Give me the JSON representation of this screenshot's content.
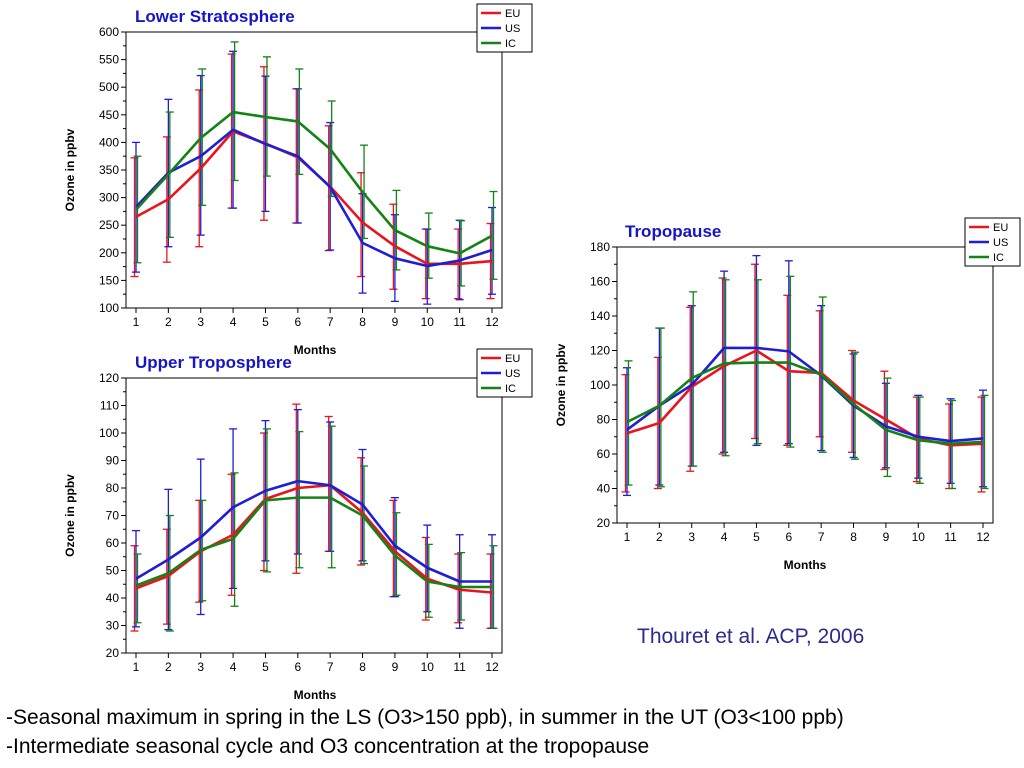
{
  "chart_data": [
    {
      "type": "line",
      "title": "Lower Stratosphere",
      "xlabel": "Months",
      "ylabel": "Ozone in ppbv",
      "ylim": [
        100,
        600
      ],
      "yticks": [
        100,
        150,
        200,
        250,
        300,
        350,
        400,
        450,
        500,
        550,
        600
      ],
      "x": [
        1,
        2,
        3,
        4,
        5,
        6,
        7,
        8,
        9,
        10,
        11,
        12
      ],
      "legend_position": "top-right",
      "series": [
        {
          "name": "EU",
          "color": "#e8141e",
          "values": [
            265,
            297,
            353,
            420,
            398,
            373,
            320,
            255,
            212,
            180,
            180,
            185
          ],
          "err_low": [
            157,
            183,
            211,
            281,
            259,
            254,
            204,
            157,
            134,
            117,
            117,
            117
          ],
          "err_high": [
            372,
            410,
            495,
            560,
            537,
            497,
            430,
            345,
            288,
            243,
            243,
            253
          ]
        },
        {
          "name": "US",
          "color": "#1e1ed2",
          "values": [
            283,
            345,
            375,
            423,
            397,
            375,
            319,
            218,
            190,
            176,
            186,
            205
          ],
          "err_low": [
            165,
            211,
            232,
            281,
            275,
            254,
            205,
            127,
            112,
            107,
            115,
            125
          ],
          "err_high": [
            400,
            478,
            521,
            565,
            520,
            497,
            436,
            307,
            269,
            243,
            259,
            282
          ]
        },
        {
          "name": "IC",
          "color": "#148214",
          "values": [
            278,
            342,
            408,
            455,
            446,
            438,
            388,
            310,
            241,
            212,
            199,
            231
          ],
          "err_low": [
            182,
            228,
            286,
            331,
            339,
            342,
            302,
            226,
            169,
            154,
            140,
            152
          ],
          "err_high": [
            375,
            455,
            533,
            582,
            555,
            533,
            475,
            395,
            313,
            272,
            258,
            311
          ]
        }
      ]
    },
    {
      "type": "line",
      "title": "Upper Troposphere",
      "xlabel": "Months",
      "ylabel": "Ozone in ppbv",
      "ylim": [
        20,
        120
      ],
      "yticks": [
        20,
        30,
        40,
        50,
        60,
        70,
        80,
        90,
        100,
        110,
        120
      ],
      "x": [
        1,
        2,
        3,
        4,
        5,
        6,
        7,
        8,
        9,
        10,
        11,
        12
      ],
      "legend_position": "top-right",
      "series": [
        {
          "name": "EU",
          "color": "#e8141e",
          "values": [
            43.5,
            48,
            57,
            63,
            76,
            80,
            81,
            71,
            57,
            47,
            43,
            42
          ],
          "err_low": [
            28,
            30.5,
            38.5,
            41,
            50,
            49,
            57,
            52,
            40.5,
            32,
            31,
            29
          ],
          "err_high": [
            59,
            65,
            75.5,
            85,
            100,
            110.5,
            106,
            91,
            75.5,
            62,
            56,
            56
          ]
        },
        {
          "name": "US",
          "color": "#1e1ed2",
          "values": [
            47,
            54,
            62,
            73,
            79,
            82.5,
            81,
            74,
            59,
            51,
            46,
            46
          ],
          "err_low": [
            29.5,
            28.5,
            34,
            43.5,
            53.5,
            56,
            57,
            53.5,
            40.5,
            35,
            29,
            29
          ],
          "err_high": [
            64.5,
            79.5,
            90.5,
            101.5,
            104.5,
            108.5,
            104,
            94,
            76.5,
            66.5,
            63,
            63
          ]
        },
        {
          "name": "IC",
          "color": "#148214",
          "values": [
            44.5,
            49,
            57.5,
            61.5,
            75.5,
            76.5,
            76.5,
            70,
            55.5,
            46,
            44,
            44
          ],
          "err_low": [
            31,
            28,
            39,
            37,
            49.5,
            51,
            51,
            52.5,
            41,
            33,
            32,
            29
          ],
          "err_high": [
            56,
            70,
            75.5,
            85.5,
            101.5,
            100.5,
            102.5,
            88,
            71,
            59.5,
            56.5,
            59
          ]
        }
      ]
    },
    {
      "type": "line",
      "title": "Tropopause",
      "xlabel": "Months",
      "ylabel": "Ozone in ppbv",
      "ylim": [
        20,
        180
      ],
      "yticks": [
        20,
        40,
        60,
        80,
        100,
        120,
        140,
        160,
        180
      ],
      "x": [
        1,
        2,
        3,
        4,
        5,
        6,
        7,
        8,
        9,
        10,
        11,
        12
      ],
      "legend_position": "top-right",
      "series": [
        {
          "name": "EU",
          "color": "#e8141e",
          "values": [
            72,
            78,
            99,
            111,
            120,
            108,
            107,
            91,
            80,
            69,
            65,
            66
          ],
          "err_low": [
            38,
            40,
            50,
            60,
            69,
            65,
            70,
            61,
            51,
            44,
            40,
            38
          ],
          "err_high": [
            106,
            116,
            145,
            162,
            170,
            152,
            143,
            120,
            108,
            93,
            89,
            93
          ]
        },
        {
          "name": "US",
          "color": "#1e1ed2",
          "values": [
            74,
            88,
            100,
            121.5,
            121.5,
            119.5,
            105.5,
            88,
            76,
            70,
            67.5,
            69
          ],
          "err_low": [
            36,
            42,
            53,
            61,
            65,
            66,
            62,
            58,
            52,
            46,
            43,
            41
          ],
          "err_high": [
            110,
            133,
            146,
            166,
            175,
            172,
            146,
            118,
            101,
            94,
            92,
            97
          ]
        },
        {
          "name": "IC",
          "color": "#148214",
          "values": [
            78.5,
            88,
            104,
            112.5,
            113,
            113,
            106,
            89,
            74,
            68,
            66,
            67
          ],
          "err_low": [
            42,
            41,
            53,
            59,
            66,
            64,
            61,
            57,
            47,
            43,
            40,
            40
          ],
          "err_high": [
            114,
            133,
            154,
            161,
            161,
            163,
            151,
            119,
            104,
            93,
            91,
            94
          ]
        }
      ]
    }
  ],
  "citation": "Thouret et al. ACP, 2006",
  "notes": [
    "-Seasonal maximum in spring in the LS (O3>150 ppb), in summer in the UT (O3<100 ppb)",
    "-Intermediate seasonal cycle and O3 concentration at the tropopause"
  ]
}
